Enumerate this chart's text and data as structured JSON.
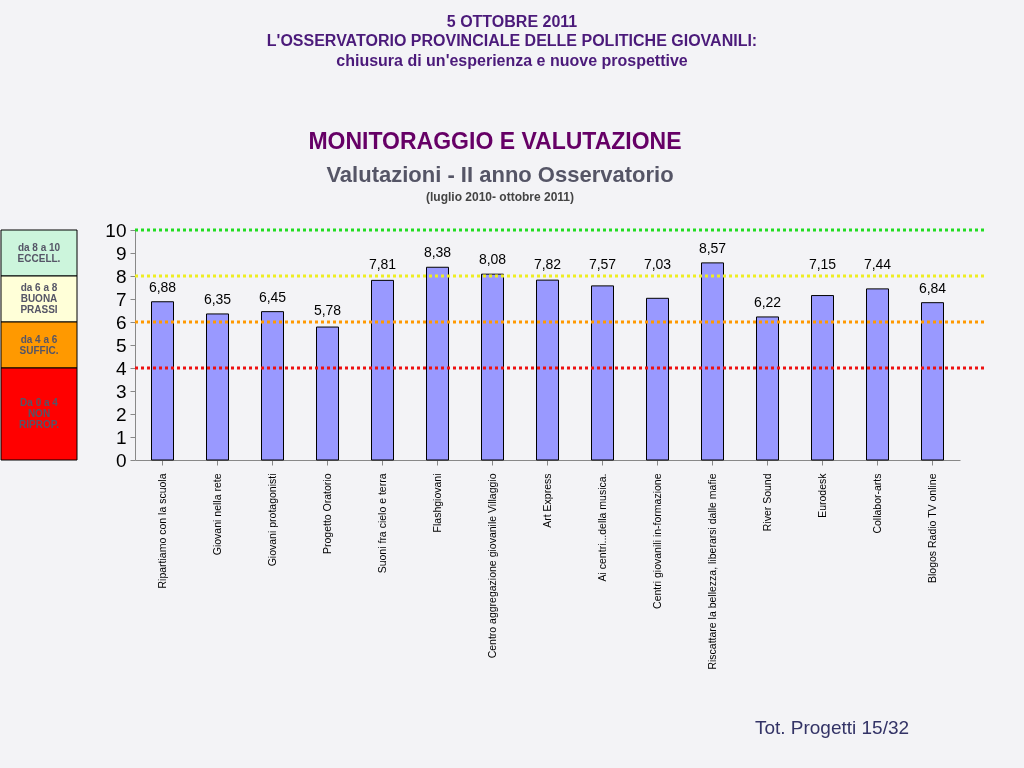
{
  "chart_data": {
    "type": "bar",
    "title": "MONITORAGGIO E VALUTAZIONE",
    "subtitle": "Valutazioni - II anno Osservatorio",
    "annotations": [
      "5  OTTOBRE 2011",
      "L'OSSERVATORIO PROVINCIALE DELLE POLITICHE GIOVANILI:",
      "chiusura di un'esperienza e nuove prospettive",
      "(luglio 2010- ottobre 2011)",
      "Tot. Progetti 15/32",
      "da 8 a 10\nECCELL.",
      "da 6 a 8\nBUONA\nPRASSI",
      "da 4 a 6\n\nSUFFIC.",
      "Da 0 a 4\n\nNON\n\nRIPROP."
    ],
    "categories": [
      "Ripartiamo con la scuola",
      "Giovani nella rete",
      "Giovani protagonisti",
      "Progetto Oratorio",
      "Suoni fra cielo e terra",
      "Flashgiovani",
      "Centro aggregazione giovanile Villaggio",
      "Art Express",
      "Ai centri...della musica.",
      "Centri giovanili in-formazione",
      "Riscattare la bellezza, liberarsi dalle mafie",
      "River Sound",
      "Eurodesk",
      "Collabor-arts",
      "Blogos Radio TV online"
    ],
    "values": [
      6.88,
      6.35,
      6.45,
      5.78,
      7.81,
      8.38,
      8.08,
      7.82,
      7.57,
      7.03,
      8.57,
      6.22,
      7.15,
      7.44,
      6.84
    ],
    "value_labels": [
      "6,88",
      "6,35",
      "6,45",
      "5,78",
      "7,81",
      "8,38",
      "8,08",
      "7,82",
      "7,57",
      "7,03",
      "8,57",
      "6,22",
      "7,15",
      "7,44",
      "6,84"
    ],
    "color": "#9999ff",
    "ylim": [
      0,
      10
    ],
    "yticks": [
      0,
      1,
      2,
      3,
      4,
      5,
      6,
      7,
      8,
      9,
      10
    ],
    "grid": false,
    "ref_lines": [
      {
        "axis": "y",
        "value": 10,
        "color": "#22dd22",
        "line_style": "dotted"
      },
      {
        "axis": "y",
        "value": 8,
        "color": "#eeee22",
        "line_style": "dotted"
      },
      {
        "axis": "y",
        "value": 6,
        "color": "#ff9900",
        "line_style": "dotted"
      },
      {
        "axis": "y",
        "value": 4,
        "color": "#ee1111",
        "line_style": "dotted"
      }
    ]
  }
}
